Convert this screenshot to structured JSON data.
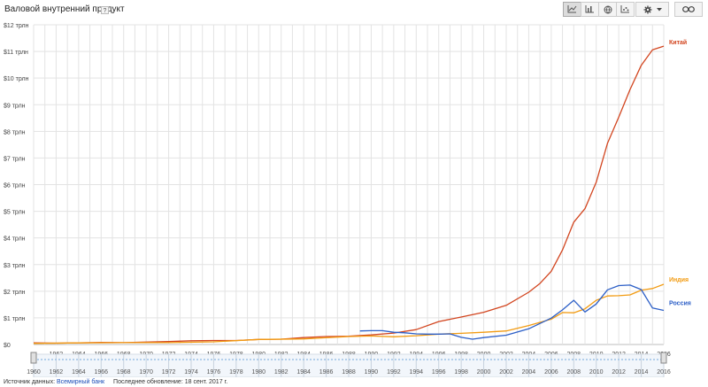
{
  "header": {
    "title": "Валовой внутренний продукт",
    "help": "?"
  },
  "toolbar": {
    "buttons": [
      "line-chart-icon",
      "bar-chart-icon",
      "map-icon",
      "scatter-icon"
    ],
    "settings_icon": "gear-icon",
    "link_icon": "link-icon"
  },
  "colors": {
    "china": "#d2451f",
    "india": "#f29b12",
    "russia": "#2c5fc7",
    "grid": "#e3e3e3",
    "axis_text": "#444444"
  },
  "chart_data": {
    "type": "line",
    "title": "",
    "xlabel": "",
    "ylabel": "",
    "xlim": [
      1960,
      2016
    ],
    "ylim": [
      0,
      12
    ],
    "y_ticks": [
      "$0",
      "$1 трлн",
      "$2 трлн",
      "$3 трлн",
      "$4 трлн",
      "$5 трлн",
      "$6 трлн",
      "$7 трлн",
      "$8 трлн",
      "$9 трлн",
      "$10 трлн",
      "$11 трлн",
      "$12 трлн"
    ],
    "x_ticks": [
      1962,
      1964,
      1966,
      1968,
      1970,
      1972,
      1974,
      1976,
      1978,
      1980,
      1982,
      1984,
      1986,
      1988,
      1990,
      1992,
      1994,
      1996,
      1998,
      2000,
      2002,
      2004,
      2006,
      2008,
      2010,
      2012,
      2014,
      2016
    ],
    "range_ticks": [
      1960,
      1962,
      1964,
      1966,
      1968,
      1970,
      1972,
      1974,
      1976,
      1978,
      1980,
      1982,
      1984,
      1986,
      1988,
      1990,
      1992,
      1994,
      1996,
      1998,
      2000,
      2002,
      2004,
      2006,
      2008,
      2010,
      2012,
      2014,
      2016
    ],
    "grid": true,
    "legend": "right, at line ends",
    "series": [
      {
        "name": "Китай",
        "x": [
          1960,
          1962,
          1964,
          1966,
          1968,
          1970,
          1972,
          1974,
          1976,
          1978,
          1980,
          1982,
          1984,
          1986,
          1988,
          1990,
          1992,
          1994,
          1996,
          1998,
          2000,
          2002,
          2004,
          2005,
          2006,
          2007,
          2008,
          2009,
          2010,
          2011,
          2012,
          2013,
          2014,
          2015,
          2016
        ],
        "values": [
          0.06,
          0.05,
          0.06,
          0.08,
          0.07,
          0.09,
          0.11,
          0.14,
          0.15,
          0.15,
          0.19,
          0.2,
          0.26,
          0.3,
          0.31,
          0.36,
          0.43,
          0.56,
          0.86,
          1.03,
          1.21,
          1.47,
          1.96,
          2.29,
          2.75,
          3.55,
          4.59,
          5.1,
          6.09,
          7.55,
          8.53,
          9.57,
          10.48,
          11.06,
          11.2
        ]
      },
      {
        "name": "Индия",
        "x": [
          1960,
          1964,
          1968,
          1972,
          1976,
          1980,
          1984,
          1988,
          1990,
          1992,
          1994,
          1996,
          1998,
          2000,
          2002,
          2004,
          2006,
          2007,
          2008,
          2009,
          2010,
          2011,
          2012,
          2013,
          2014,
          2015,
          2016
        ],
        "values": [
          0.04,
          0.06,
          0.07,
          0.07,
          0.1,
          0.19,
          0.21,
          0.3,
          0.32,
          0.29,
          0.33,
          0.39,
          0.42,
          0.46,
          0.51,
          0.71,
          0.95,
          1.2,
          1.19,
          1.34,
          1.66,
          1.82,
          1.83,
          1.86,
          2.04,
          2.1,
          2.26
        ]
      },
      {
        "name": "Россия",
        "x": [
          1989,
          1990,
          1991,
          1992,
          1993,
          1994,
          1995,
          1996,
          1997,
          1998,
          1999,
          2000,
          2002,
          2004,
          2006,
          2007,
          2008,
          2009,
          2010,
          2011,
          2012,
          2013,
          2014,
          2015,
          2016
        ],
        "values": [
          0.51,
          0.52,
          0.52,
          0.46,
          0.44,
          0.4,
          0.39,
          0.39,
          0.4,
          0.27,
          0.2,
          0.26,
          0.35,
          0.59,
          0.99,
          1.3,
          1.66,
          1.22,
          1.52,
          2.05,
          2.21,
          2.23,
          2.06,
          1.37,
          1.28
        ]
      }
    ]
  },
  "footer": {
    "source_label": "Источник данных:",
    "source_link": "Всемирный банк",
    "updated": "Последнее обновление: 18 сент. 2017 г."
  }
}
